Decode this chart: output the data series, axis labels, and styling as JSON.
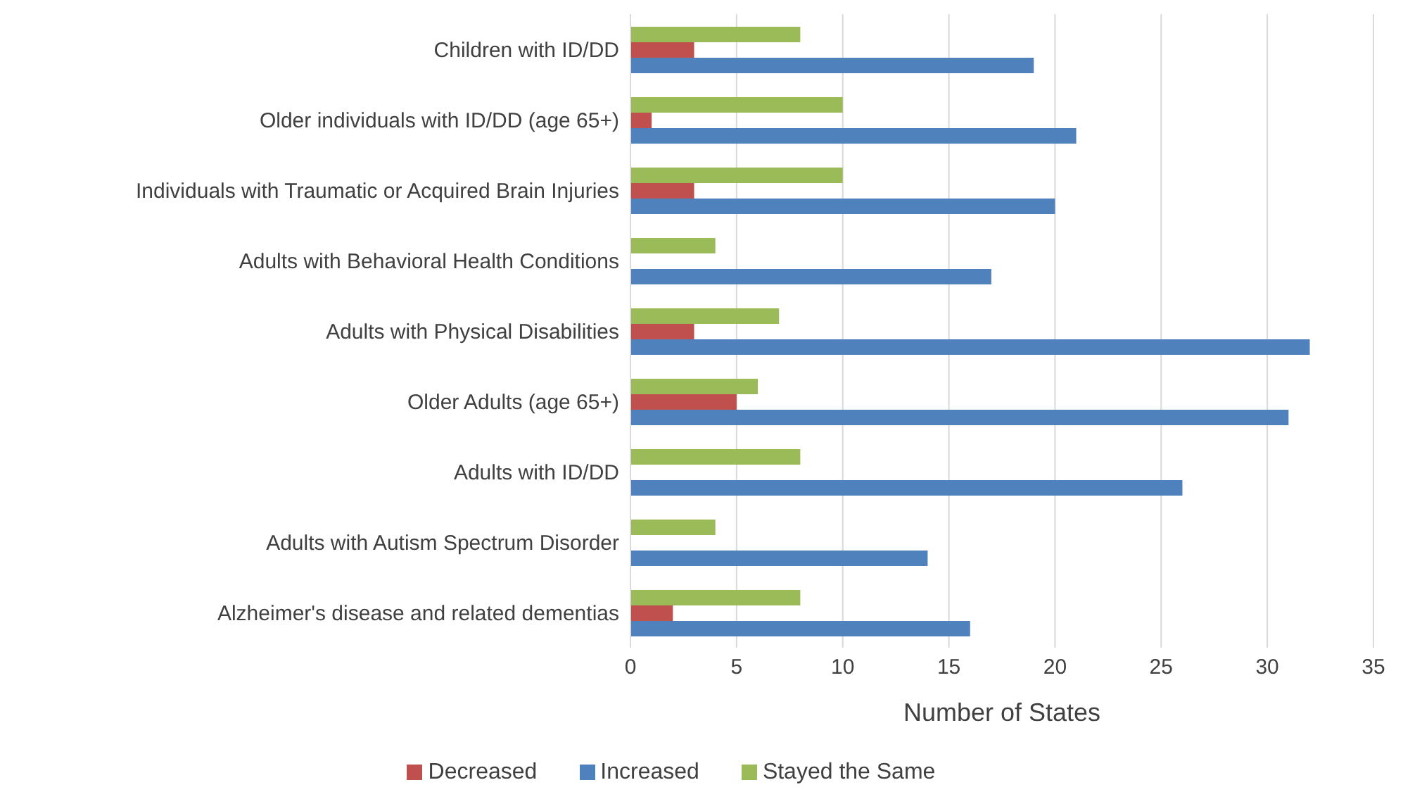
{
  "chart_data": {
    "type": "bar",
    "orientation": "horizontal",
    "xlabel": "Number of States",
    "categories": [
      "Children with ID/DD",
      "Older individuals with ID/DD (age 65+)",
      "Individuals with Traumatic or Acquired Brain Injuries",
      "Adults with Behavioral Health Conditions",
      "Adults with Physical Disabilities",
      "Older Adults (age 65+)",
      "Adults with ID/DD",
      "Adults with Autism Spectrum Disorder",
      "Alzheimer's disease and related dementias"
    ],
    "series": [
      {
        "name": "Stayed the Same",
        "color": "#9bbb59",
        "values": [
          8,
          10,
          10,
          4,
          7,
          6,
          8,
          4,
          8
        ]
      },
      {
        "name": "Decreased",
        "color": "#c0504d",
        "values": [
          3,
          1,
          3,
          0,
          3,
          5,
          0,
          0,
          2
        ]
      },
      {
        "name": "Increased",
        "color": "#4f81bd",
        "values": [
          19,
          21,
          20,
          17,
          32,
          31,
          26,
          14,
          16
        ]
      }
    ],
    "xlim": [
      0,
      35
    ],
    "xticks": [
      0,
      5,
      10,
      15,
      20,
      25,
      30,
      35
    ],
    "grid": "x",
    "legend": "bottom"
  }
}
